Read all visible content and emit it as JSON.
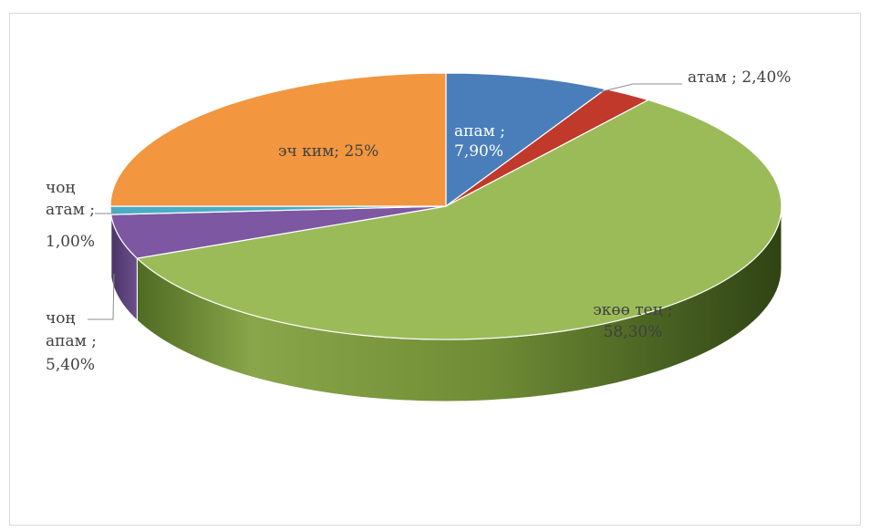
{
  "chart_data": {
    "type": "pie",
    "title": "",
    "style": "3d",
    "slices": [
      {
        "name": "апам",
        "value": 7.9,
        "label_name": "апам ;",
        "label_value": "7,90%",
        "color": "#4a7ebb"
      },
      {
        "name": "атам",
        "value": 2.4,
        "label_name": "атам ;",
        "label_value": "2,40%",
        "color": "#c0392b"
      },
      {
        "name": "экөө тең",
        "value": 58.3,
        "label_name": "экөө тең ;",
        "label_value": "58,30%",
        "color": "#9bbb59"
      },
      {
        "name": "чоң апам",
        "value": 5.4,
        "label_name": "чоң апам ;",
        "label_value": "5,40%",
        "color": "#7e57a2"
      },
      {
        "name": "чоң атам",
        "value": 1.0,
        "label_name": "чоң атам ;",
        "label_value": "1,00%",
        "color": "#4bacc6"
      },
      {
        "name": "эч ким",
        "value": 25,
        "label_name": "эч ким;",
        "label_value": "25%",
        "color": "#f29640"
      }
    ],
    "legend": "none"
  }
}
